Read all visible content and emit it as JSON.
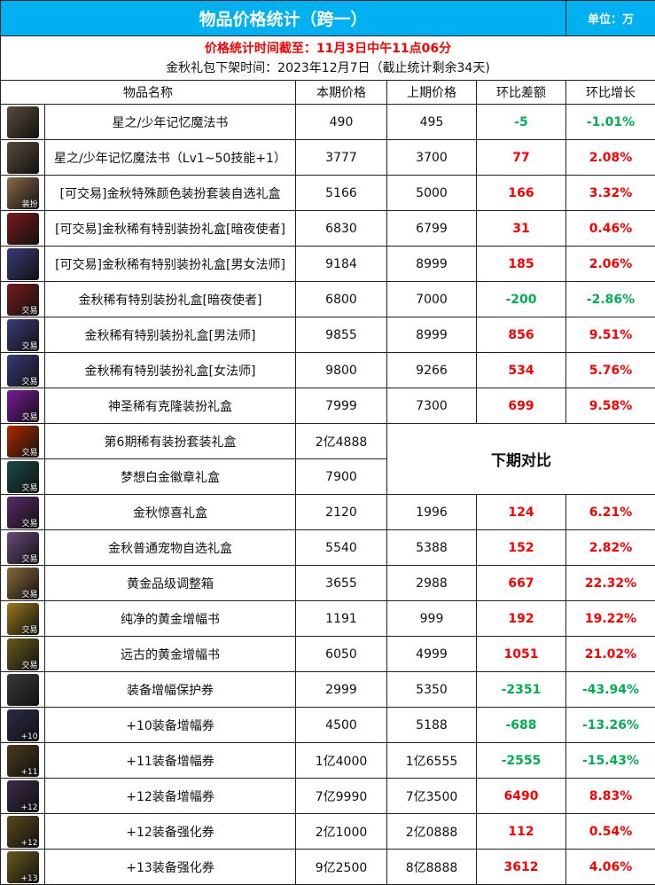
{
  "header": {
    "title": "物品价格统计（跨一）",
    "unit": "单位：万"
  },
  "info": {
    "deadline": "价格统计时间截至：11月3日中午11点06分",
    "release": "金秋礼包下架时间：2023年12月7日（截止统计剩余34天)"
  },
  "columns": [
    "物品名称",
    "本期价格",
    "上期价格",
    "环比差额",
    "环比增长"
  ],
  "next_compare_label": "下期对比",
  "colors": {
    "header": "#00b0f0",
    "up": "#ff0000",
    "down": "#00b050"
  },
  "rows": [
    {
      "name": "星之/少年记忆魔法书",
      "cur": "490",
      "prev": "495",
      "diff": "-5",
      "pct": "-1.01%",
      "trend": "down",
      "icon": "magic-book-icon",
      "badge": "",
      "color": "#5a4a3a"
    },
    {
      "name": "星之/少年记忆魔法书（Lv1~50技能+1）",
      "cur": "3777",
      "prev": "3700",
      "diff": "77",
      "pct": "2.08%",
      "trend": "up",
      "icon": "magic-book-icon",
      "badge": "",
      "color": "#5a4a3a"
    },
    {
      "name": "[可交易]金秋特殊颜色装扮套装自选礼盒",
      "cur": "5166",
      "prev": "5000",
      "diff": "166",
      "pct": "3.32%",
      "trend": "up",
      "icon": "gift-box-icon",
      "badge": "装扮",
      "color": "#8a6a4a"
    },
    {
      "name": "[可交易]金秋稀有特别装扮礼盒[暗夜使者]",
      "cur": "6830",
      "prev": "6799",
      "diff": "31",
      "pct": "0.46%",
      "trend": "up",
      "icon": "gift-box-icon",
      "badge": "",
      "color": "#7a1a1a"
    },
    {
      "name": "[可交易]金秋稀有特别装扮礼盒[男女法师]",
      "cur": "9184",
      "prev": "8999",
      "diff": "185",
      "pct": "2.06%",
      "trend": "up",
      "icon": "gift-box-icon",
      "badge": "",
      "color": "#3a3a7a"
    },
    {
      "name": "金秋稀有特别装扮礼盒[暗夜使者]",
      "cur": "6800",
      "prev": "7000",
      "diff": "-200",
      "pct": "-2.86%",
      "trend": "down",
      "icon": "gift-box-icon",
      "badge": "交易",
      "color": "#7a1a1a"
    },
    {
      "name": "金秋稀有特别装扮礼盒[男法师]",
      "cur": "9855",
      "prev": "8999",
      "diff": "856",
      "pct": "9.51%",
      "trend": "up",
      "icon": "gift-box-icon",
      "badge": "交易",
      "color": "#3a3a7a"
    },
    {
      "name": "金秋稀有特别装扮礼盒[女法师]",
      "cur": "9800",
      "prev": "9266",
      "diff": "534",
      "pct": "5.76%",
      "trend": "up",
      "icon": "gift-box-icon",
      "badge": "交易",
      "color": "#3a3a7a"
    },
    {
      "name": "神圣稀有克隆装扮礼盒",
      "cur": "7999",
      "prev": "7300",
      "diff": "699",
      "pct": "9.58%",
      "trend": "up",
      "icon": "clone-box-icon",
      "badge": "交易",
      "color": "#7a1a9a"
    },
    {
      "name": "第6期稀有装扮套装礼盒",
      "cur": "2亿4888",
      "prev": "",
      "diff": "",
      "pct": "",
      "trend": "none",
      "icon": "gift-box-icon",
      "badge": "交易",
      "color": "#b02a00"
    },
    {
      "name": "梦想白金徽章礼盒",
      "cur": "7900",
      "prev": "",
      "diff": "",
      "pct": "",
      "trend": "none",
      "icon": "emblem-box-icon",
      "badge": "交易",
      "color": "#1a4a4a"
    },
    {
      "name": "金秋惊喜礼盒",
      "cur": "2120",
      "prev": "1996",
      "diff": "124",
      "pct": "6.21%",
      "trend": "up",
      "icon": "surprise-box-icon",
      "badge": "交易",
      "color": "#5a2a6a"
    },
    {
      "name": "金秋普通宠物自选礼盒",
      "cur": "5540",
      "prev": "5388",
      "diff": "152",
      "pct": "2.82%",
      "trend": "up",
      "icon": "pet-box-icon",
      "badge": "交易",
      "color": "#6a4a7a"
    },
    {
      "name": "黄金品级调整箱",
      "cur": "3655",
      "prev": "2988",
      "diff": "667",
      "pct": "22.32%",
      "trend": "up",
      "icon": "grade-box-icon",
      "badge": "交易",
      "color": "#8a6a3a"
    },
    {
      "name": "纯净的黄金增幅书",
      "cur": "1191",
      "prev": "999",
      "diff": "192",
      "pct": "19.22%",
      "trend": "up",
      "icon": "amplify-book-icon",
      "badge": "交易",
      "color": "#9a7a1a"
    },
    {
      "name": "远古的黄金增幅书",
      "cur": "6050",
      "prev": "4999",
      "diff": "1051",
      "pct": "21.02%",
      "trend": "up",
      "icon": "amplify-book-icon",
      "badge": "交易",
      "color": "#6a5a1a"
    },
    {
      "name": "装备增幅保护券",
      "cur": "2999",
      "prev": "5350",
      "diff": "-2351",
      "pct": "-43.94%",
      "trend": "down",
      "icon": "protect-ticket-icon",
      "badge": "",
      "color": "#3a3a3a"
    },
    {
      "name": "+10装备增幅券",
      "cur": "4500",
      "prev": "5188",
      "diff": "-688",
      "pct": "-13.26%",
      "trend": "down",
      "icon": "amplify-ticket-icon",
      "badge": "+10",
      "color": "#2a2a4a"
    },
    {
      "name": "+11装备增幅券",
      "cur": "1亿4000",
      "prev": "1亿6555",
      "diff": "-2555",
      "pct": "-15.43%",
      "trend": "down",
      "icon": "amplify-ticket-icon",
      "badge": "+11",
      "color": "#4a3a1a"
    },
    {
      "name": "+12装备增幅券",
      "cur": "7亿9990",
      "prev": "7亿3500",
      "diff": "6490",
      "pct": "8.83%",
      "trend": "up",
      "icon": "amplify-ticket-icon",
      "badge": "+12",
      "color": "#3a2a4a"
    },
    {
      "name": "+12装备强化券",
      "cur": "2亿1000",
      "prev": "2亿0888",
      "diff": "112",
      "pct": "0.54%",
      "trend": "up",
      "icon": "reinforce-ticket-icon",
      "badge": "+12",
      "color": "#5a4a1a"
    },
    {
      "name": "+13装备强化券",
      "cur": "9亿2500",
      "prev": "8亿8888",
      "diff": "3612",
      "pct": "4.06%",
      "trend": "up",
      "icon": "reinforce-ticket-icon",
      "badge": "+13",
      "color": "#6a5a1a"
    }
  ]
}
